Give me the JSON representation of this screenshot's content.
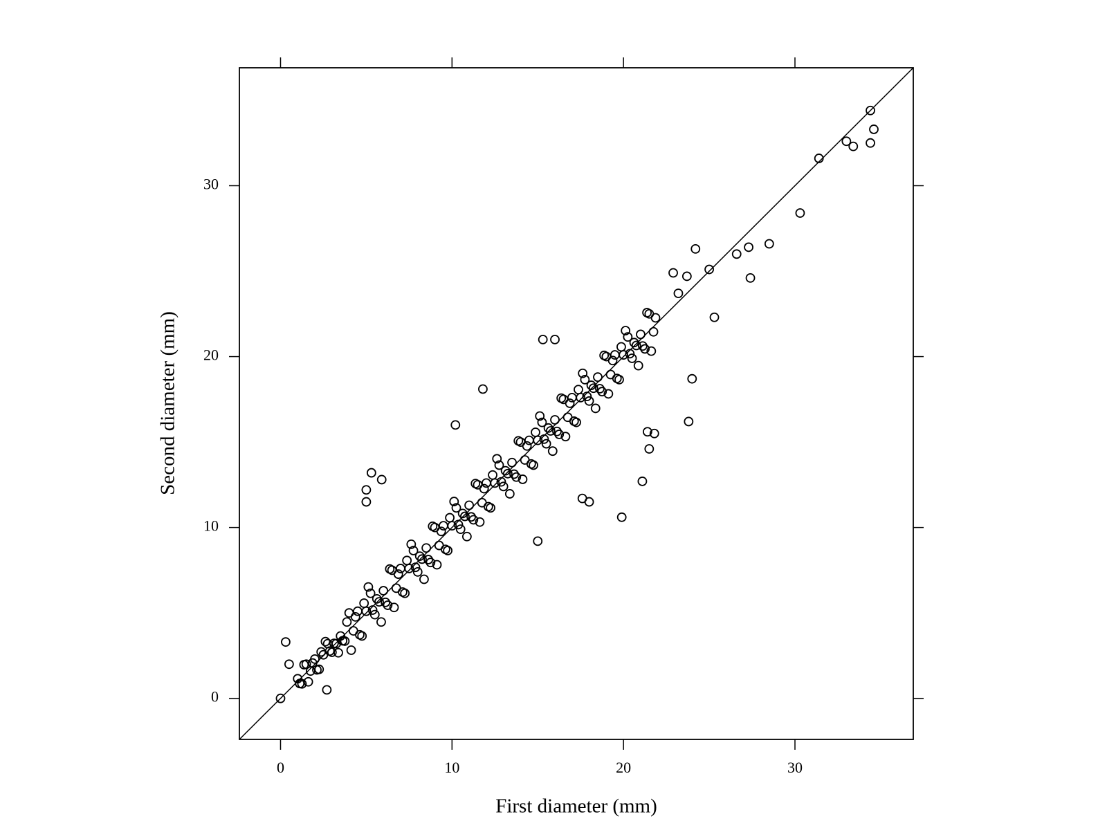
{
  "chart_data": {
    "type": "scatter",
    "xlabel": "First diameter (mm)",
    "ylabel": "Second diameter (mm)",
    "xlim": [
      -2.4,
      36.9
    ],
    "ylim": [
      -2.4,
      36.9
    ],
    "xticks": [
      0,
      10,
      20,
      30
    ],
    "yticks": [
      0,
      10,
      20,
      30
    ],
    "grid": false,
    "identity_line": true,
    "series": [
      {
        "color": "#000000",
        "x": [
          1.0,
          1.12,
          1.25,
          1.37,
          1.5,
          1.62,
          1.75,
          1.87,
          2.0,
          2.12,
          2.25,
          2.37,
          2.5,
          2.62,
          2.75,
          2.87,
          3.0,
          3.12,
          3.25,
          3.37,
          3.5,
          3.62,
          3.75,
          3.87,
          4.0,
          4.12,
          4.25,
          4.37,
          4.5,
          4.62,
          4.75,
          4.87,
          5.0,
          5.12,
          5.25,
          5.37,
          5.5,
          5.62,
          5.75,
          5.87,
          6.0,
          6.12,
          6.25,
          6.37,
          6.5,
          6.62,
          6.75,
          6.87,
          7.0,
          7.12,
          7.25,
          7.37,
          7.5,
          7.62,
          7.75,
          7.87,
          8.0,
          8.12,
          8.25,
          8.37,
          8.5,
          8.62,
          8.75,
          8.87,
          9.0,
          9.12,
          9.25,
          9.37,
          9.5,
          9.62,
          9.75,
          9.87,
          10.0,
          10.12,
          10.25,
          10.37,
          10.5,
          10.62,
          10.75,
          10.87,
          11.0,
          11.12,
          11.25,
          11.37,
          11.5,
          11.62,
          11.75,
          11.87,
          12.0,
          12.12,
          12.25,
          12.37,
          12.5,
          12.62,
          12.75,
          12.87,
          13.0,
          13.12,
          13.25,
          13.37,
          13.5,
          13.62,
          13.75,
          13.87,
          14.0,
          14.12,
          14.25,
          14.37,
          14.5,
          14.62,
          14.75,
          14.87,
          15.0,
          15.12,
          15.25,
          15.37,
          15.5,
          15.62,
          15.75,
          15.87,
          16.0,
          16.12,
          16.25,
          16.37,
          16.5,
          16.62,
          16.75,
          16.87,
          17.0,
          17.12,
          17.25,
          17.37,
          17.5,
          17.62,
          17.75,
          17.87,
          18.0,
          18.12,
          18.25,
          18.37,
          18.5,
          18.62,
          18.75,
          18.87,
          19.0,
          19.12,
          19.25,
          19.37,
          19.5,
          19.62,
          19.75,
          19.87,
          20.0,
          20.12,
          20.25,
          20.37,
          20.5,
          20.62,
          20.75,
          20.87,
          21.0,
          21.12,
          21.25,
          21.37,
          21.5,
          21.62,
          21.75,
          21.87,
          34.4,
          34.6,
          34.4,
          33.0,
          33.4,
          31.4,
          30.3,
          28.5,
          27.3,
          26.6,
          27.4,
          24.2,
          25.0,
          25.3,
          23.7,
          23.8,
          24.0,
          21.1,
          19.9,
          18.0,
          17.6,
          15.0,
          5.3,
          5.0,
          5.0,
          5.9,
          0.0,
          0.3,
          0.5,
          2.7,
          21.5,
          21.8,
          21.4,
          10.2,
          11.8,
          15.3,
          16.0,
          22.9,
          23.2
        ],
        "values": [
          1.15,
          0.87,
          0.85,
          1.97,
          2.0,
          0.97,
          1.6,
          2.07,
          2.3,
          1.67,
          1.7,
          2.72,
          2.55,
          3.32,
          3.2,
          2.77,
          2.7,
          3.22,
          3.2,
          2.67,
          3.65,
          3.37,
          3.35,
          4.47,
          5.0,
          2.82,
          3.95,
          4.77,
          5.1,
          3.72,
          3.65,
          5.57,
          5.1,
          6.52,
          6.15,
          5.17,
          4.9,
          5.82,
          5.65,
          4.47,
          6.3,
          5.62,
          5.45,
          7.57,
          7.5,
          5.32,
          6.45,
          7.27,
          7.6,
          6.22,
          6.15,
          8.07,
          7.6,
          9.02,
          8.65,
          7.67,
          7.4,
          8.32,
          8.15,
          6.97,
          8.8,
          8.12,
          7.95,
          10.07,
          10.0,
          7.82,
          8.95,
          9.77,
          10.1,
          8.72,
          8.65,
          10.57,
          10.1,
          11.52,
          11.15,
          10.17,
          9.9,
          10.82,
          10.65,
          9.47,
          11.3,
          10.62,
          10.45,
          12.57,
          12.5,
          10.32,
          11.45,
          12.27,
          12.6,
          11.22,
          11.15,
          13.07,
          12.6,
          14.02,
          13.65,
          12.67,
          12.4,
          13.32,
          13.15,
          11.97,
          13.8,
          13.12,
          12.95,
          15.07,
          15.0,
          12.82,
          13.95,
          14.77,
          15.1,
          13.72,
          13.65,
          15.57,
          15.1,
          16.52,
          16.15,
          15.17,
          14.9,
          15.82,
          15.65,
          14.47,
          16.3,
          15.62,
          15.45,
          17.57,
          17.5,
          15.32,
          16.45,
          17.27,
          17.6,
          16.22,
          16.15,
          18.07,
          17.6,
          19.02,
          18.65,
          17.67,
          17.4,
          18.32,
          18.15,
          16.97,
          18.8,
          18.12,
          17.95,
          20.07,
          20.0,
          17.82,
          18.95,
          19.77,
          20.1,
          18.72,
          18.65,
          20.57,
          20.1,
          21.52,
          21.15,
          20.17,
          19.9,
          20.82,
          20.65,
          19.47,
          21.3,
          20.62,
          20.45,
          22.57,
          22.5,
          20.32,
          21.45,
          22.27,
          34.4,
          33.3,
          32.5,
          32.6,
          32.3,
          31.6,
          28.4,
          26.6,
          26.4,
          26.0,
          24.6,
          26.3,
          25.1,
          22.3,
          24.7,
          16.2,
          18.7,
          12.7,
          10.6,
          11.5,
          11.7,
          9.2,
          13.2,
          12.2,
          11.5,
          12.8,
          0.0,
          3.3,
          2.0,
          0.5,
          14.6,
          15.5,
          15.6,
          16.0,
          18.1,
          21.0,
          21.0,
          24.9,
          23.7
        ]
      }
    ]
  }
}
